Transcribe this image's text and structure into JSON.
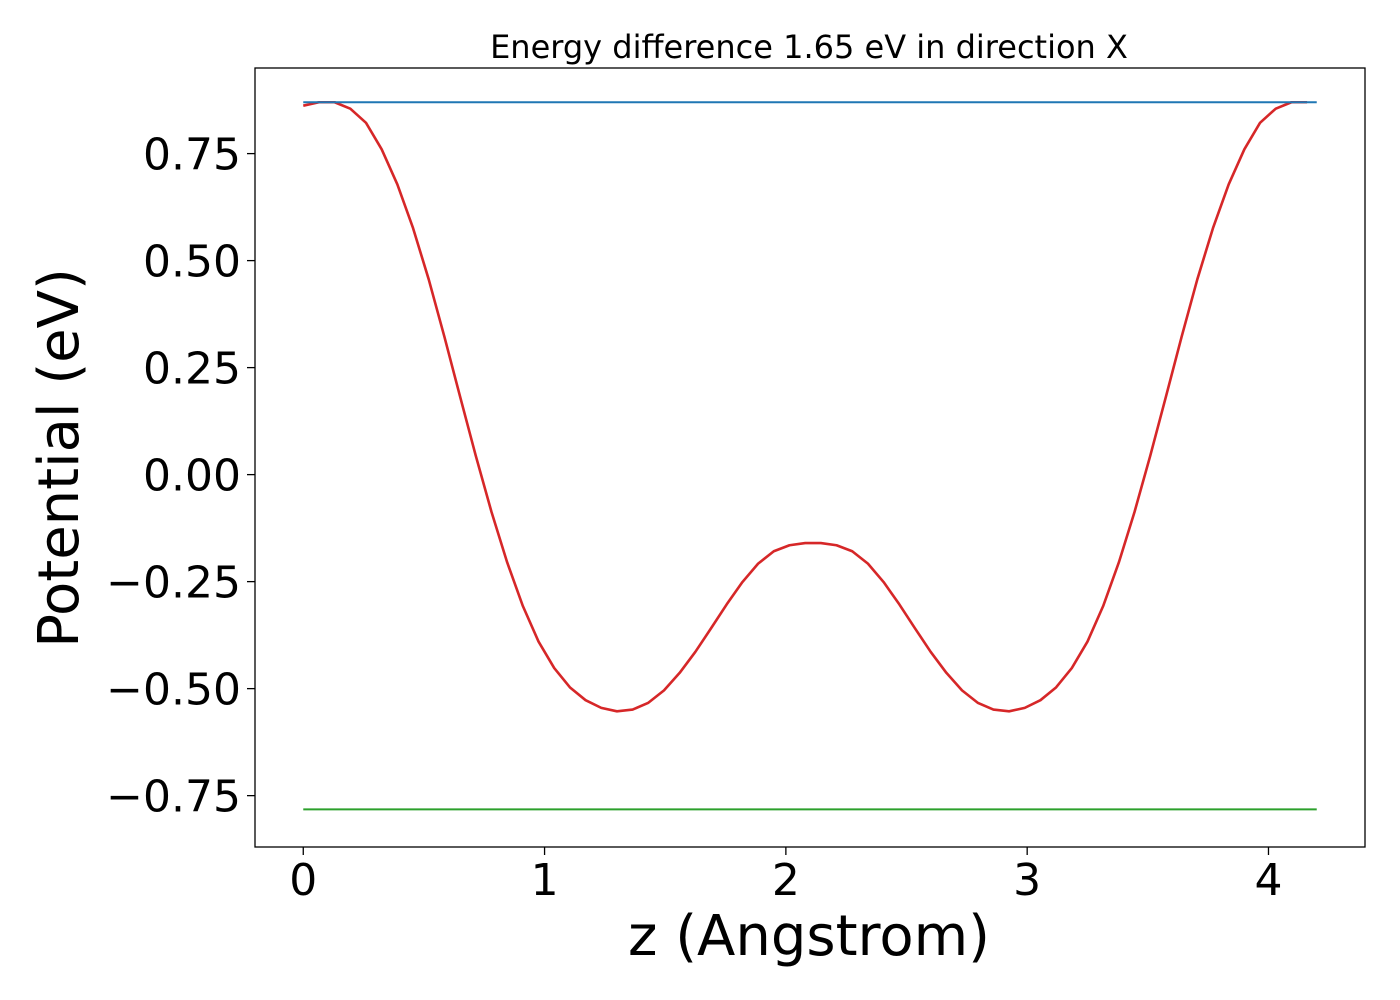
{
  "chart_data": {
    "type": "line",
    "title": "Energy difference 1.65 eV in direction X",
    "xlabel": "z (Angstrom)",
    "ylabel": "Potential (eV)",
    "xlim": [
      -0.2,
      4.4
    ],
    "ylim": [
      -0.87,
      0.95
    ],
    "x_ticks": [
      0,
      1,
      2,
      3,
      4
    ],
    "x_tick_labels": [
      "0",
      "1",
      "2",
      "3",
      "4"
    ],
    "y_ticks": [
      0.75,
      0.5,
      0.25,
      0.0,
      -0.25,
      -0.5,
      -0.75
    ],
    "y_tick_labels": [
      "0.75",
      "0.50",
      "0.25",
      "0.00",
      "−0.25",
      "−0.50",
      "−0.75"
    ],
    "grid": false,
    "series": [
      {
        "color": "#d62728",
        "x": [
          0.0,
          0.065,
          0.13,
          0.195,
          0.26,
          0.325,
          0.39,
          0.455,
          0.52,
          0.585,
          0.65,
          0.715,
          0.78,
          0.845,
          0.91,
          0.975,
          1.04,
          1.105,
          1.17,
          1.235,
          1.3,
          1.365,
          1.43,
          1.495,
          1.56,
          1.625,
          1.69,
          1.755,
          1.82,
          1.885,
          1.95,
          2.015,
          2.08,
          2.145,
          2.21,
          2.275,
          2.34,
          2.405,
          2.47,
          2.535,
          2.6,
          2.665,
          2.73,
          2.795,
          2.86,
          2.925,
          2.99,
          3.055,
          3.12,
          3.185,
          3.25,
          3.315,
          3.38,
          3.445,
          3.51,
          3.575,
          3.64,
          3.705,
          3.77,
          3.835,
          3.9,
          3.965,
          4.03,
          4.095,
          4.16
        ],
        "y": [
          0.862,
          0.87,
          0.87,
          0.855,
          0.822,
          0.76,
          0.678,
          0.576,
          0.456,
          0.322,
          0.182,
          0.044,
          -0.087,
          -0.205,
          -0.307,
          -0.39,
          -0.452,
          -0.497,
          -0.527,
          -0.545,
          -0.553,
          -0.549,
          -0.533,
          -0.504,
          -0.463,
          -0.414,
          -0.359,
          -0.303,
          -0.251,
          -0.208,
          -0.179,
          -0.165,
          -0.16,
          -0.16,
          -0.165,
          -0.179,
          -0.208,
          -0.251,
          -0.303,
          -0.359,
          -0.414,
          -0.463,
          -0.504,
          -0.533,
          -0.549,
          -0.553,
          -0.545,
          -0.527,
          -0.497,
          -0.452,
          -0.39,
          -0.307,
          -0.205,
          -0.087,
          0.044,
          0.182,
          0.322,
          0.456,
          0.576,
          0.678,
          0.76,
          0.822,
          0.855,
          0.87,
          0.87
        ]
      },
      {
        "color": "#1f77b4",
        "x": [
          0.0,
          4.2
        ],
        "y": [
          0.87,
          0.87
        ]
      },
      {
        "color": "#2ca02c",
        "x": [
          0.0,
          4.2
        ],
        "y": [
          -0.782,
          -0.782
        ]
      }
    ]
  }
}
